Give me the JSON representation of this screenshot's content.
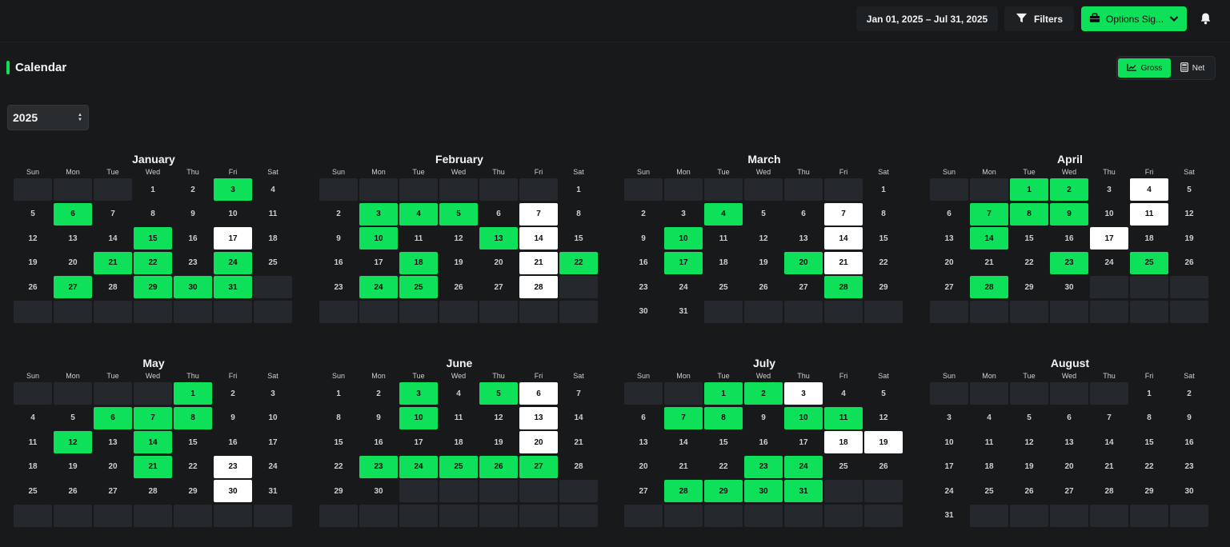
{
  "header": {
    "date_range": "Jan 01, 2025 – Jul 31, 2025",
    "filters_label": "Filters",
    "options_label": "Options Sig...",
    "accent_color": "#0fe05a"
  },
  "page": {
    "title": "Calendar",
    "toggle": {
      "gross_label": "Gross",
      "net_label": "Net",
      "selected": "Gross"
    },
    "year": "2025"
  },
  "weekdays": [
    "Sun",
    "Mon",
    "Tue",
    "Wed",
    "Thu",
    "Fri",
    "Sat"
  ],
  "months": [
    {
      "name": "January",
      "offset": 3,
      "days": 31,
      "rows": 6,
      "green": [
        3,
        6,
        15,
        21,
        22,
        24,
        27,
        29,
        30,
        31
      ],
      "white": [
        17
      ]
    },
    {
      "name": "February",
      "offset": 6,
      "days": 28,
      "rows": 6,
      "green": [
        3,
        4,
        5,
        10,
        13,
        18,
        22,
        24,
        25
      ],
      "white": [
        7,
        14,
        21,
        28
      ]
    },
    {
      "name": "March",
      "offset": 6,
      "days": 31,
      "rows": 6,
      "green": [
        4,
        10,
        17,
        20,
        28
      ],
      "white": [
        7,
        14,
        21
      ]
    },
    {
      "name": "April",
      "offset": 2,
      "days": 30,
      "rows": 6,
      "green": [
        1,
        2,
        7,
        8,
        9,
        14,
        23,
        25,
        28
      ],
      "white": [
        4,
        11,
        17
      ]
    },
    {
      "name": "May",
      "offset": 4,
      "days": 31,
      "rows": 6,
      "green": [
        1,
        6,
        7,
        8,
        12,
        14,
        21
      ],
      "white": [
        23,
        30
      ]
    },
    {
      "name": "June",
      "offset": 0,
      "days": 30,
      "rows": 6,
      "green": [
        3,
        5,
        10,
        23,
        24,
        25,
        26,
        27
      ],
      "white": [
        6,
        13,
        20
      ]
    },
    {
      "name": "July",
      "offset": 2,
      "days": 31,
      "rows": 6,
      "green": [
        1,
        2,
        7,
        8,
        10,
        11,
        23,
        24,
        28,
        29,
        30,
        31
      ],
      "white": [
        3,
        18,
        19
      ]
    },
    {
      "name": "August",
      "offset": 5,
      "days": 31,
      "rows": 6,
      "green": [],
      "white": []
    }
  ]
}
